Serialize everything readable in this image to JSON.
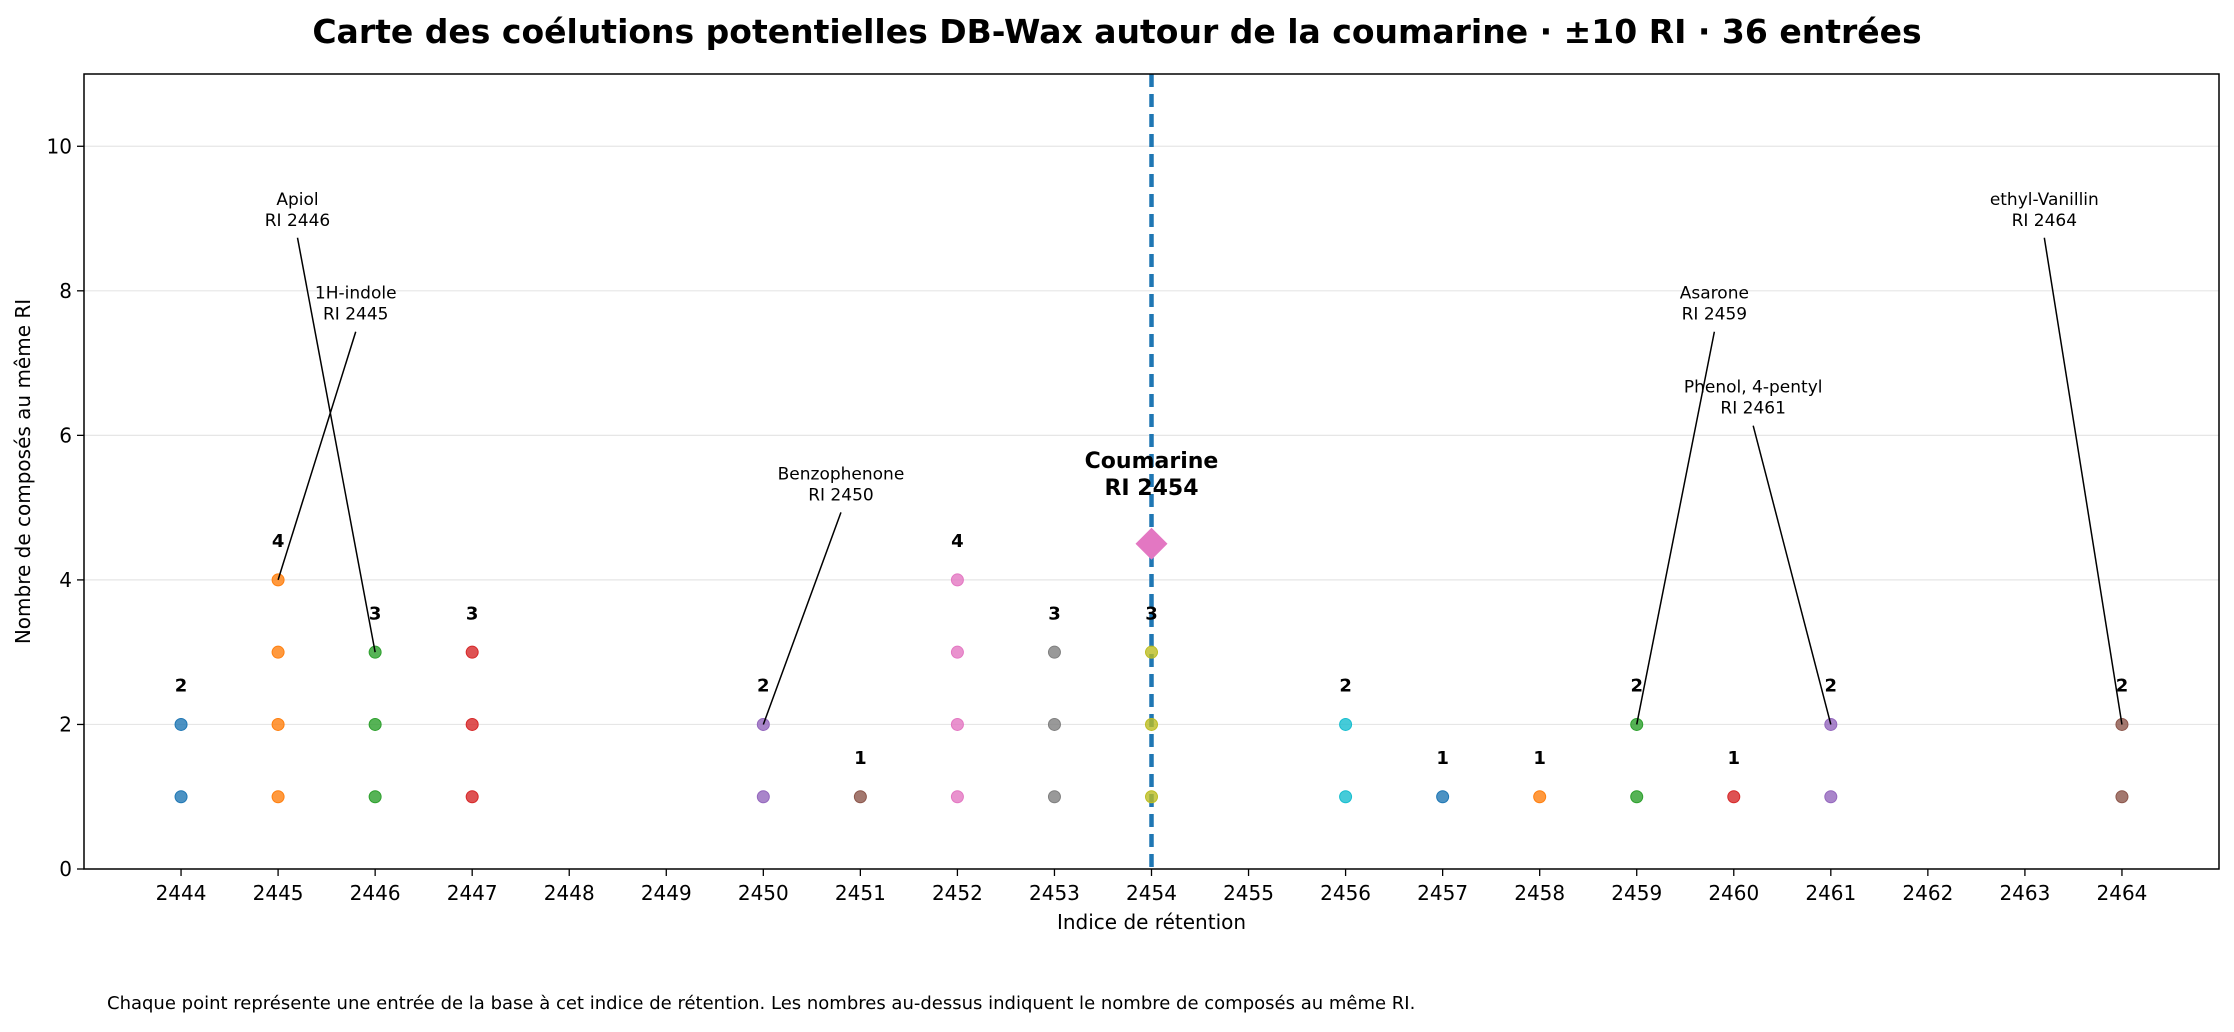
{
  "chart_data": {
    "type": "scatter",
    "title": "Carte des coélutions potentielles DB-Wax autour de la coumarine · ±10 RI · 36 entrées",
    "xlabel": "Indice de rétention",
    "ylabel": "Nombre de composés au même RI",
    "footnote": "Chaque point représente une entrée de la base à cet indice de rétention. Les nombres au-dessus indiquent le nombre de composés au même RI.",
    "xlim": [
      2443,
      2465
    ],
    "ylim": [
      0,
      11
    ],
    "x_ticks": [
      2444,
      2445,
      2446,
      2447,
      2448,
      2449,
      2450,
      2451,
      2452,
      2453,
      2454,
      2455,
      2456,
      2457,
      2458,
      2459,
      2460,
      2461,
      2462,
      2463,
      2464
    ],
    "y_ticks": [
      0,
      2,
      4,
      6,
      8,
      10
    ],
    "grid": "horizontal",
    "groups": [
      {
        "ri": 2444,
        "count": 2,
        "color": "#1f77b4"
      },
      {
        "ri": 2445,
        "count": 4,
        "color": "#ff7f0e"
      },
      {
        "ri": 2446,
        "count": 3,
        "color": "#2ca02c"
      },
      {
        "ri": 2447,
        "count": 3,
        "color": "#d62728"
      },
      {
        "ri": 2450,
        "count": 2,
        "color": "#9467bd"
      },
      {
        "ri": 2451,
        "count": 1,
        "color": "#8c564b"
      },
      {
        "ri": 2452,
        "count": 4,
        "color": "#e377c2"
      },
      {
        "ri": 2453,
        "count": 3,
        "color": "#7f7f7f"
      },
      {
        "ri": 2454,
        "count": 3,
        "color": "#bcbd22"
      },
      {
        "ri": 2456,
        "count": 2,
        "color": "#17becf"
      },
      {
        "ri": 2457,
        "count": 1,
        "color": "#1f77b4"
      },
      {
        "ri": 2458,
        "count": 1,
        "color": "#ff7f0e"
      },
      {
        "ri": 2459,
        "count": 2,
        "color": "#2ca02c"
      },
      {
        "ri": 2460,
        "count": 1,
        "color": "#d62728"
      },
      {
        "ri": 2461,
        "count": 2,
        "color": "#9467bd"
      },
      {
        "ri": 2464,
        "count": 2,
        "color": "#8c564b"
      }
    ],
    "target": {
      "name": "Coumarine",
      "ri_label": "RI 2454",
      "x": 2454,
      "y": 4.5,
      "color": "#e377c2",
      "line_color": "#1f77b4"
    },
    "annotations": [
      {
        "name": "Apiol",
        "ri_label": "RI 2446",
        "x": 2446,
        "y": 3,
        "text_x": 2445.2,
        "text_y": 8.9
      },
      {
        "name": "1H-indole",
        "ri_label": "RI 2445",
        "x": 2445,
        "y": 4,
        "text_x": 2445.8,
        "text_y": 7.6
      },
      {
        "name": "Benzophenone",
        "ri_label": "RI 2450",
        "x": 2450,
        "y": 2,
        "text_x": 2450.8,
        "text_y": 5.1
      },
      {
        "name": "Asarone",
        "ri_label": "RI 2459",
        "x": 2459,
        "y": 2,
        "text_x": 2459.8,
        "text_y": 7.6
      },
      {
        "name": "Phenol, 4-pentyl",
        "ri_label": "RI 2461",
        "x": 2461,
        "y": 2,
        "text_x": 2460.2,
        "text_y": 6.3
      },
      {
        "name": "ethyl-Vanillin",
        "ri_label": "RI 2464",
        "x": 2464,
        "y": 2,
        "text_x": 2463.2,
        "text_y": 8.9
      }
    ]
  }
}
